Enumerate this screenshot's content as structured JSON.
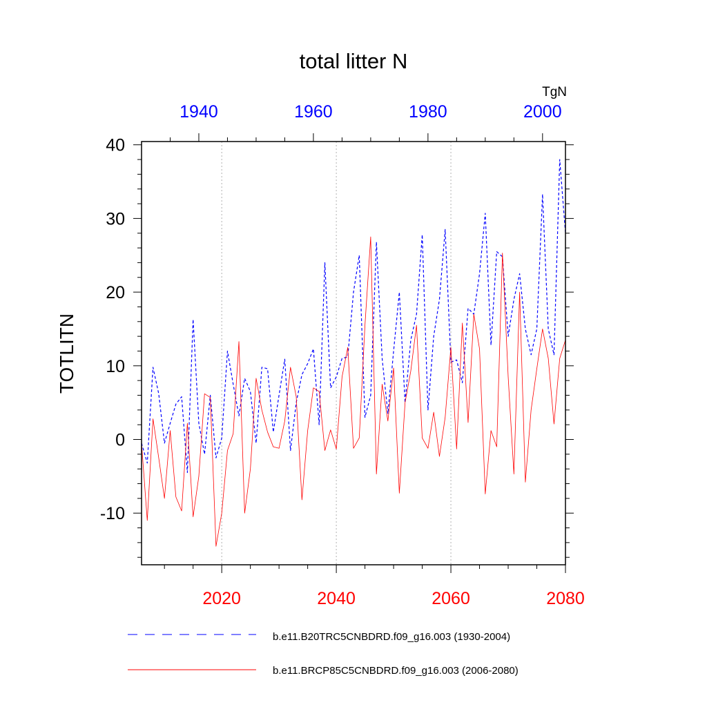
{
  "chart_data": {
    "type": "line",
    "title": "total litter N",
    "ylabel": "TOTLITN",
    "units": "TgN",
    "ylim": [
      -17,
      40
    ],
    "yticks": [
      40,
      30,
      20,
      10,
      0,
      -10
    ],
    "yticks_text": [
      "40",
      "30",
      "20",
      "10",
      "0",
      "-10"
    ],
    "bottom_axis": {
      "range": [
        2006,
        2080
      ],
      "ticks": [
        2020,
        2040,
        2060,
        2080
      ],
      "ticks_text": [
        "2020",
        "2040",
        "2060",
        "2080"
      ],
      "color": "#ff0000"
    },
    "top_axis": {
      "range": [
        1930,
        2004
      ],
      "ticks": [
        1940,
        1960,
        1980,
        2000
      ],
      "ticks_text": [
        "1940",
        "1960",
        "1980",
        "2000"
      ],
      "color": "#0000ff"
    },
    "grid_x": [
      2020,
      2040,
      2060
    ],
    "series": [
      {
        "name": "b.e11.B20TRC5CNBDRD.f09_g16.003 (1930-2004)",
        "axis": "top",
        "color": "#0000ff",
        "style": "dashed",
        "x_start": 1930,
        "values": [
          -0.5,
          -3.2,
          9.8,
          6.2,
          -0.5,
          2.2,
          4.8,
          5.8,
          -4.5,
          16.3,
          2.2,
          -2.0,
          6.0,
          -2.5,
          0.2,
          12.0,
          7.5,
          3.2,
          8.3,
          6.5,
          -0.5,
          9.8,
          9.6,
          1.0,
          6.0,
          10.9,
          -1.5,
          5.0,
          8.8,
          10.3,
          12.3,
          2.0,
          24.0,
          7.0,
          8.5,
          11.0,
          11.2,
          20.0,
          25.0,
          3.0,
          6.0,
          26.8,
          11.0,
          3.5,
          12.0,
          20.0,
          5.0,
          13.5,
          17.0,
          27.8,
          4.0,
          14.0,
          19.0,
          28.5,
          10.5,
          10.8,
          7.7,
          17.8,
          17.0,
          22.5,
          30.7,
          12.8,
          25.5,
          24.8,
          14.0,
          19.0,
          22.5,
          15.0,
          11.5,
          15.0,
          33.3,
          15.0,
          11.5,
          38.0,
          28.0
        ]
      },
      {
        "name": "b.e11.BRCP85C5CNBDRD.f09_g16.003 (2006-2080)",
        "axis": "bottom",
        "color": "#ff0000",
        "style": "solid",
        "x_start": 2006,
        "values": [
          -0.5,
          -11.0,
          2.8,
          -2.5,
          -8.0,
          1.2,
          -7.8,
          -9.7,
          2.2,
          -10.5,
          -5.0,
          6.2,
          5.7,
          -14.5,
          -10.0,
          -1.5,
          0.8,
          13.3,
          -10.0,
          -4.0,
          8.3,
          4.0,
          1.0,
          -1.0,
          -1.2,
          2.5,
          9.8,
          5.8,
          -8.2,
          1.2,
          7.0,
          6.5,
          -1.5,
          1.3,
          -1.3,
          8.5,
          12.5,
          -1.2,
          0.2,
          15.5,
          27.5,
          -4.7,
          7.5,
          2.5,
          9.7,
          -7.3,
          5.0,
          9.3,
          15.5,
          0.2,
          -1.2,
          3.7,
          -2.3,
          3.0,
          12.5,
          -1.3,
          15.8,
          2.3,
          17.0,
          12.3,
          -7.4,
          1.2,
          -1.0,
          25.3,
          8.5,
          -4.7,
          20.0,
          -5.8,
          4.0,
          9.6,
          15.0,
          11.0,
          2.1,
          11.0,
          13.5
        ]
      }
    ],
    "legend": [
      {
        "label": "b.e11.B20TRC5CNBDRD.f09_g16.003 (1930-2004)",
        "color": "#0000ff",
        "style": "dashed"
      },
      {
        "label": "b.e11.BRCP85C5CNBDRD.f09_g16.003 (2006-2080)",
        "color": "#ff0000",
        "style": "solid"
      }
    ],
    "legend_position": "bottom"
  }
}
